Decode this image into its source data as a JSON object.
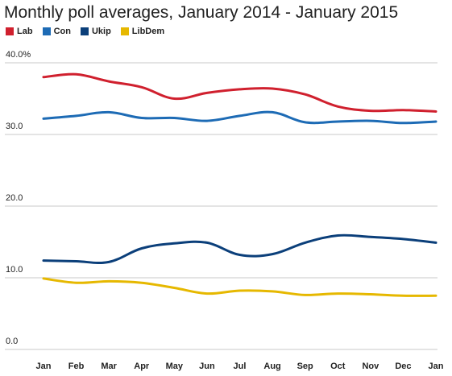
{
  "chart_data": {
    "type": "line",
    "title": "Monthly poll averages, January 2014 - January 2015",
    "xlabel": "",
    "ylabel": "",
    "categories": [
      "Jan",
      "Feb",
      "Mar",
      "Apr",
      "May",
      "Jun",
      "Jul",
      "Aug",
      "Sep",
      "Oct",
      "Nov",
      "Dec",
      "Jan"
    ],
    "ylim": [
      0,
      40
    ],
    "yticks": [
      "0.0",
      "10.0",
      "20.0",
      "30.0",
      "40.0%"
    ],
    "grid": true,
    "legend_position": "top-left",
    "series": [
      {
        "name": "Lab",
        "color": "#d0202e",
        "values": [
          38.0,
          38.4,
          37.4,
          36.6,
          35.0,
          35.8,
          36.3,
          36.4,
          35.6,
          33.9,
          33.3,
          33.4,
          33.2
        ]
      },
      {
        "name": "Con",
        "color": "#1d6bb5",
        "values": [
          32.2,
          32.6,
          33.1,
          32.3,
          32.3,
          31.9,
          32.6,
          33.1,
          31.7,
          31.8,
          31.9,
          31.6,
          31.8
        ]
      },
      {
        "name": "Ukip",
        "color": "#0b3f7a",
        "values": [
          12.4,
          12.3,
          12.2,
          14.1,
          14.8,
          14.9,
          13.2,
          13.3,
          14.9,
          15.9,
          15.7,
          15.4,
          14.9
        ]
      },
      {
        "name": "LibDem",
        "color": "#e6b800",
        "values": [
          9.9,
          9.3,
          9.5,
          9.3,
          8.6,
          7.8,
          8.2,
          8.1,
          7.6,
          7.8,
          7.7,
          7.5,
          7.5
        ]
      }
    ]
  }
}
